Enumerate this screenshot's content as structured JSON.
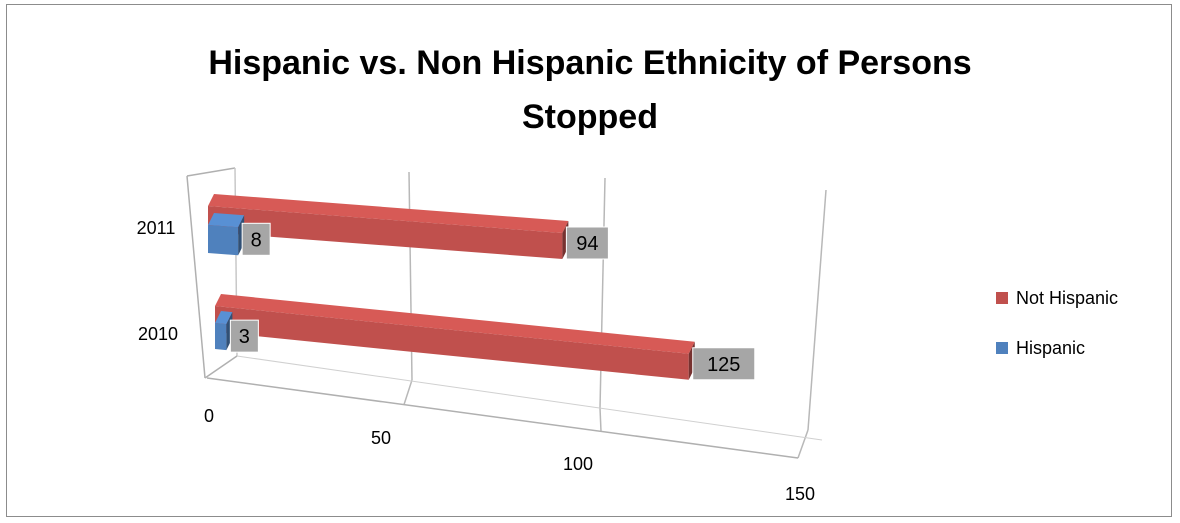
{
  "chart_data": {
    "type": "bar",
    "orientation": "horizontal",
    "style": "3d",
    "title_lines": [
      "Hispanic vs. Non Hispanic Ethnicity of Persons",
      "Stopped"
    ],
    "title": "Hispanic vs. Non Hispanic Ethnicity of Persons Stopped",
    "categories": [
      "2011",
      "2010"
    ],
    "series": [
      {
        "name": "Not Hispanic",
        "values": [
          94,
          125
        ],
        "color": "#c0504d"
      },
      {
        "name": "Hispanic",
        "values": [
          8,
          3
        ],
        "color": "#4f81bd"
      }
    ],
    "value_axis": {
      "min": 0,
      "max": 150,
      "ticks": [
        "0",
        "50",
        "100",
        "150"
      ]
    },
    "gridlines": true,
    "data_labels": true,
    "legend": {
      "position": "right",
      "order": [
        "Not Hispanic",
        "Hispanic"
      ]
    }
  }
}
